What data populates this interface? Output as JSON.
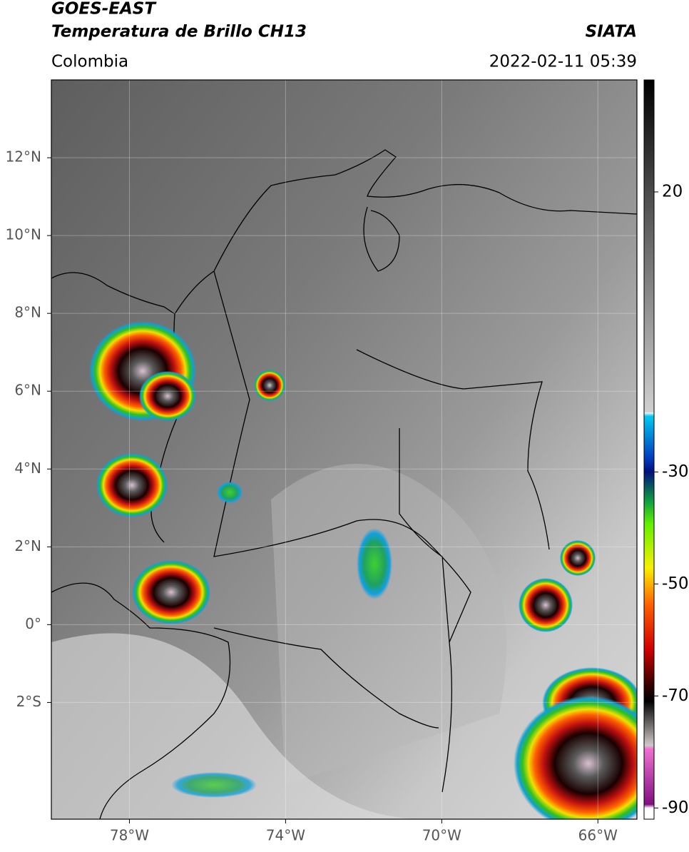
{
  "header": {
    "title": "GOES-EAST",
    "subtitle": "Temperatura de Brillo CH13",
    "source": "SIATA",
    "region": "Colombia",
    "datetime": "2022-02-11 05:39"
  },
  "map": {
    "xlim": [
      -80,
      -65
    ],
    "ylim": [
      -5,
      14
    ],
    "xticks": [
      {
        "value": -78,
        "label": "78°W"
      },
      {
        "value": -74,
        "label": "74°W"
      },
      {
        "value": -70,
        "label": "70°W"
      },
      {
        "value": -66,
        "label": "66°W"
      }
    ],
    "yticks": [
      {
        "value": 12,
        "label": "12°N"
      },
      {
        "value": 10,
        "label": "10°N"
      },
      {
        "value": 8,
        "label": "8°N"
      },
      {
        "value": 6,
        "label": "6°N"
      },
      {
        "value": 4,
        "label": "4°N"
      },
      {
        "value": 2,
        "label": "2°N"
      },
      {
        "value": 0,
        "label": "0°"
      },
      {
        "value": -2,
        "label": "2°S"
      }
    ],
    "grid": true
  },
  "colorbar": {
    "lim": [
      -92,
      40
    ],
    "ticks": [
      20,
      -30,
      -50,
      -70,
      -90
    ]
  }
}
